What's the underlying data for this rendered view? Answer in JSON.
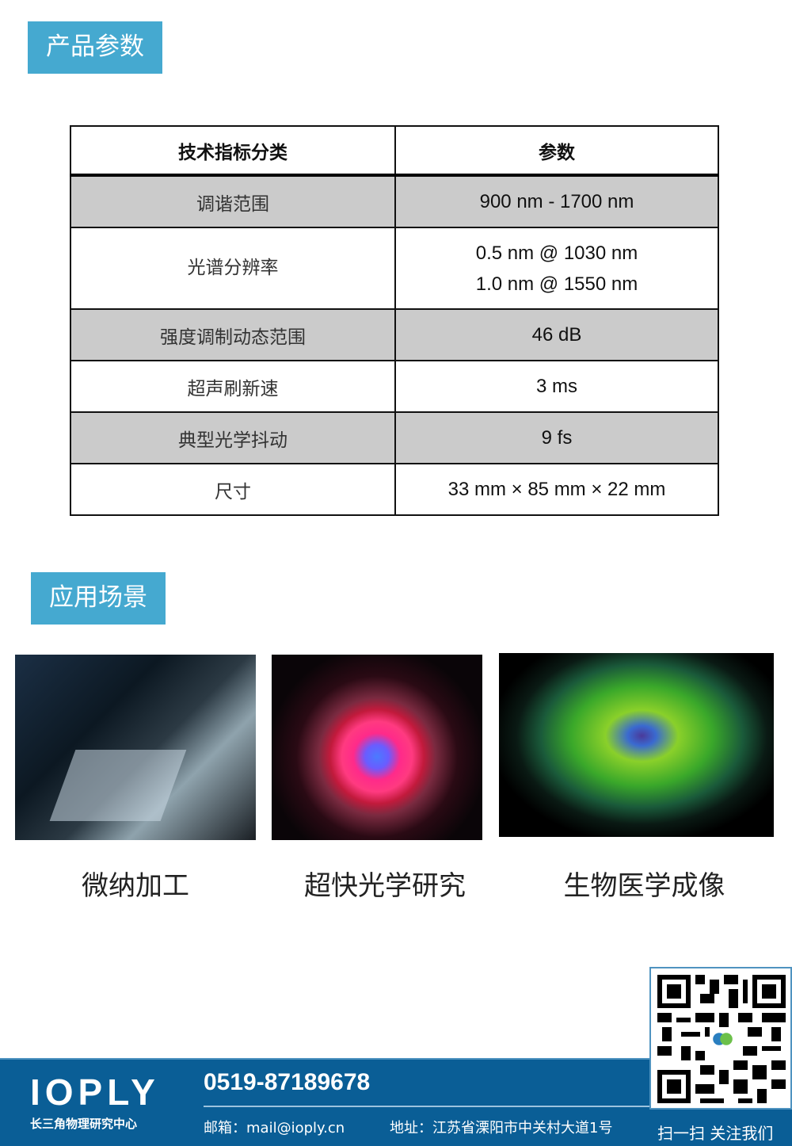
{
  "sections": {
    "params_title": "产品参数",
    "applications_title": "应用场景"
  },
  "table": {
    "headers": [
      "技术指标分类",
      "参数"
    ],
    "rows": [
      {
        "label": "调谐范围",
        "value": [
          "900 nm - 1700 nm"
        ]
      },
      {
        "label": "光谱分辨率",
        "value": [
          "0.5 nm @ 1030 nm",
          "1.0 nm @ 1550 nm"
        ]
      },
      {
        "label": "强度调制动态范围",
        "value": [
          "46 dB"
        ]
      },
      {
        "label": "超声刷新速",
        "value": [
          "3 ms"
        ]
      },
      {
        "label": "典型光学抖动",
        "value": [
          "9 fs"
        ]
      },
      {
        "label": "尺寸",
        "value": [
          "33 mm × 85 mm × 22 mm"
        ]
      }
    ]
  },
  "applications": [
    {
      "caption": "微纳加工"
    },
    {
      "caption": "超快光学研究"
    },
    {
      "caption": "生物医学成像"
    }
  ],
  "footer": {
    "logo": "IOPLY",
    "logo_sub": "长三角物理研究中心",
    "phone": "0519-87189678",
    "email": "邮箱：mail@ioply.cn",
    "address": "地址：江苏省溧阳市中关村大道1号",
    "qr_caption": "扫一扫 关注我们"
  },
  "colors": {
    "accent": "#45a9d0",
    "footer": "#0a5e96",
    "row_shade": "#cbcbcb"
  }
}
